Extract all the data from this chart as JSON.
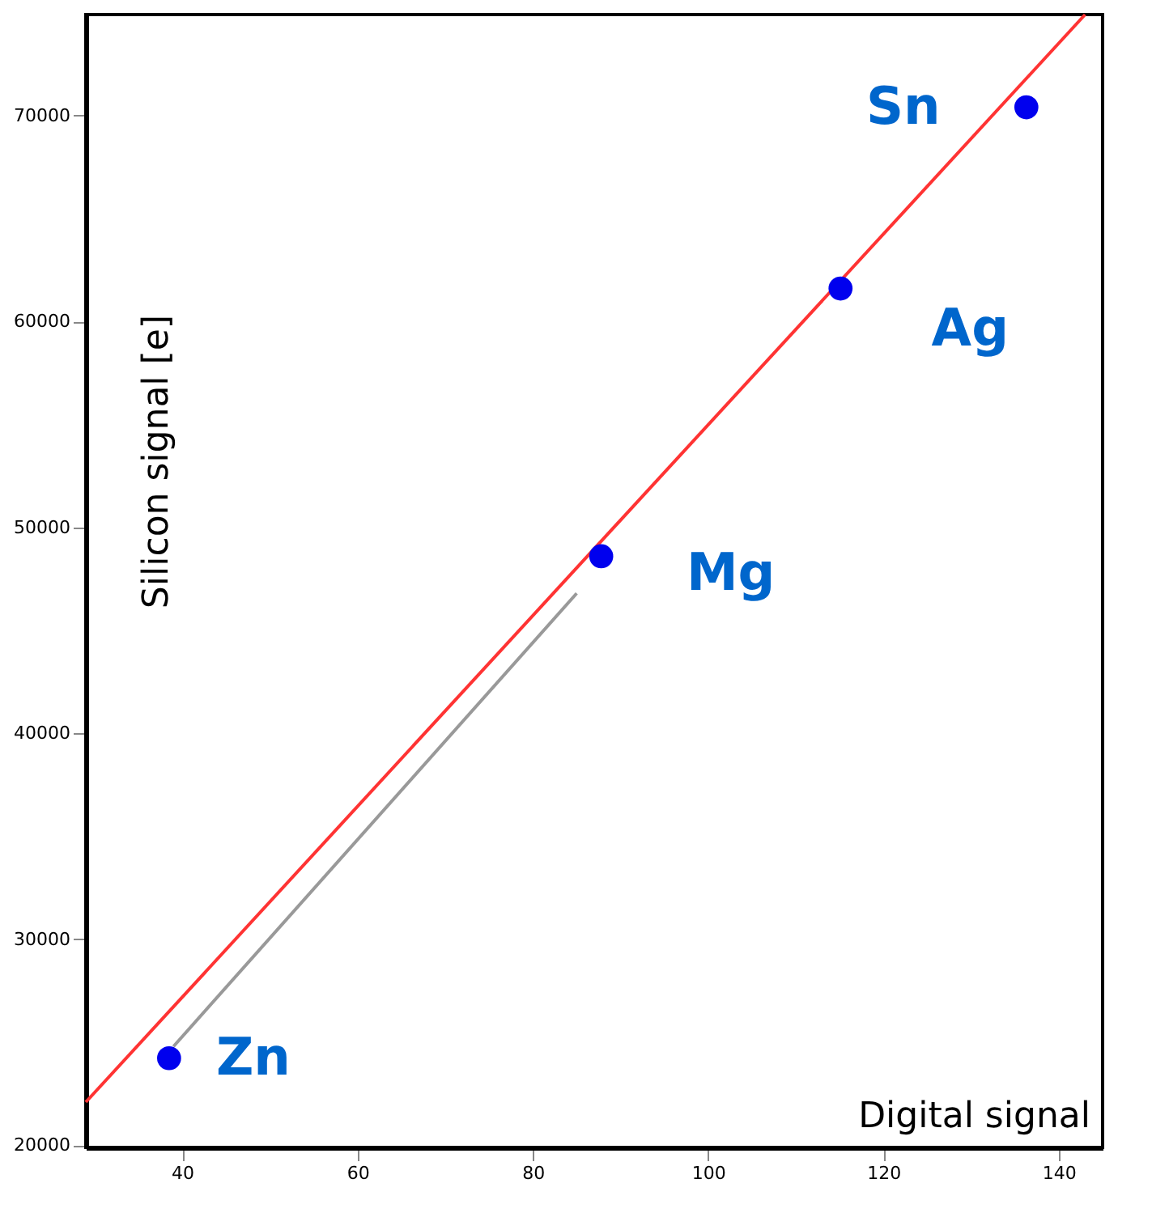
{
  "chart_data": {
    "type": "scatter",
    "xlabel": "Digital signal",
    "ylabel": "Silicon signal [e]",
    "xlim": [
      29,
      145
    ],
    "ylim": [
      19900,
      74900
    ],
    "xticks": [
      40,
      60,
      80,
      100,
      120,
      140
    ],
    "yticks": [
      20000,
      30000,
      40000,
      50000,
      60000,
      70000
    ],
    "grid": false,
    "series": [
      {
        "type": "line",
        "color": "#ff3333",
        "x": [
          29,
          143
        ],
        "values": [
          22100,
          74900
        ]
      },
      {
        "type": "line",
        "color": "#999999",
        "x": [
          39,
          85
        ],
        "values": [
          24800,
          46800
        ]
      },
      {
        "marker": "circle",
        "color": "#0000ee",
        "x": [
          38.5,
          87.8,
          115.1,
          136.3
        ],
        "values": [
          24230,
          48600,
          61600,
          70400
        ]
      }
    ],
    "annotations": [
      {
        "text": "Zn",
        "x": 38.5,
        "y": 24230
      },
      {
        "text": "Mg",
        "x": 87.8,
        "y": 48600
      },
      {
        "text": "Ag",
        "x": 115.1,
        "y": 61600
      },
      {
        "text": "Sn",
        "x": 136.3,
        "y": 70400
      }
    ]
  }
}
